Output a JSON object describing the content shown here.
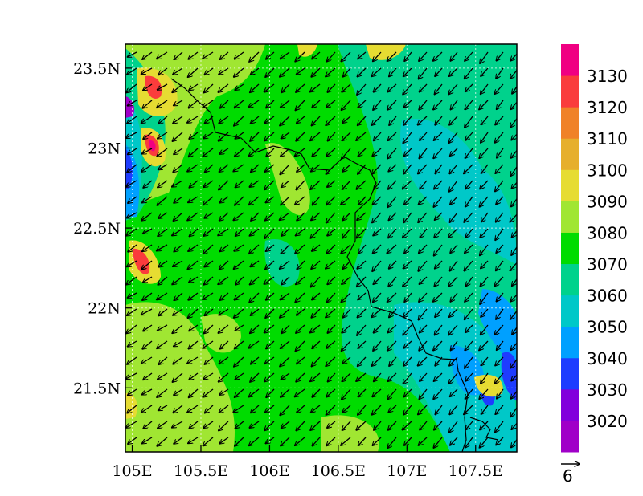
{
  "chart_data": {
    "type": "heatmap",
    "title": "",
    "xlabel": "",
    "ylabel": "",
    "xlim": [
      104.95,
      107.8
    ],
    "ylim": [
      21.1,
      23.65
    ],
    "x_ticks": [
      105,
      105.5,
      106,
      106.5,
      107,
      107.5
    ],
    "x_tick_labels": [
      "105E",
      "105.5E",
      "106E",
      "106.5E",
      "107E",
      "107.5E"
    ],
    "y_ticks": [
      21.5,
      22,
      22.5,
      23,
      23.5
    ],
    "y_tick_labels": [
      "21.5N",
      "22N",
      "22.5N",
      "23N",
      "23.5N"
    ],
    "colorbar": {
      "levels": [
        "3020",
        "3030",
        "3040",
        "3050",
        "3060",
        "3070",
        "3080",
        "3090",
        "3100",
        "3110",
        "3120",
        "3130"
      ],
      "colors": [
        "#a000c8",
        "#8200dc",
        "#1e3cff",
        "#00a0ff",
        "#00c8c8",
        "#00d28c",
        "#00dc00",
        "#a0e632",
        "#e6dc32",
        "#e6af2d",
        "#f08228",
        "#fa3c3c",
        "#f00082"
      ]
    },
    "vector_reference": {
      "label": "6",
      "magnitude": 6
    },
    "wind_direction": "northeasterly",
    "grid": true,
    "grid_style": "dotted"
  }
}
